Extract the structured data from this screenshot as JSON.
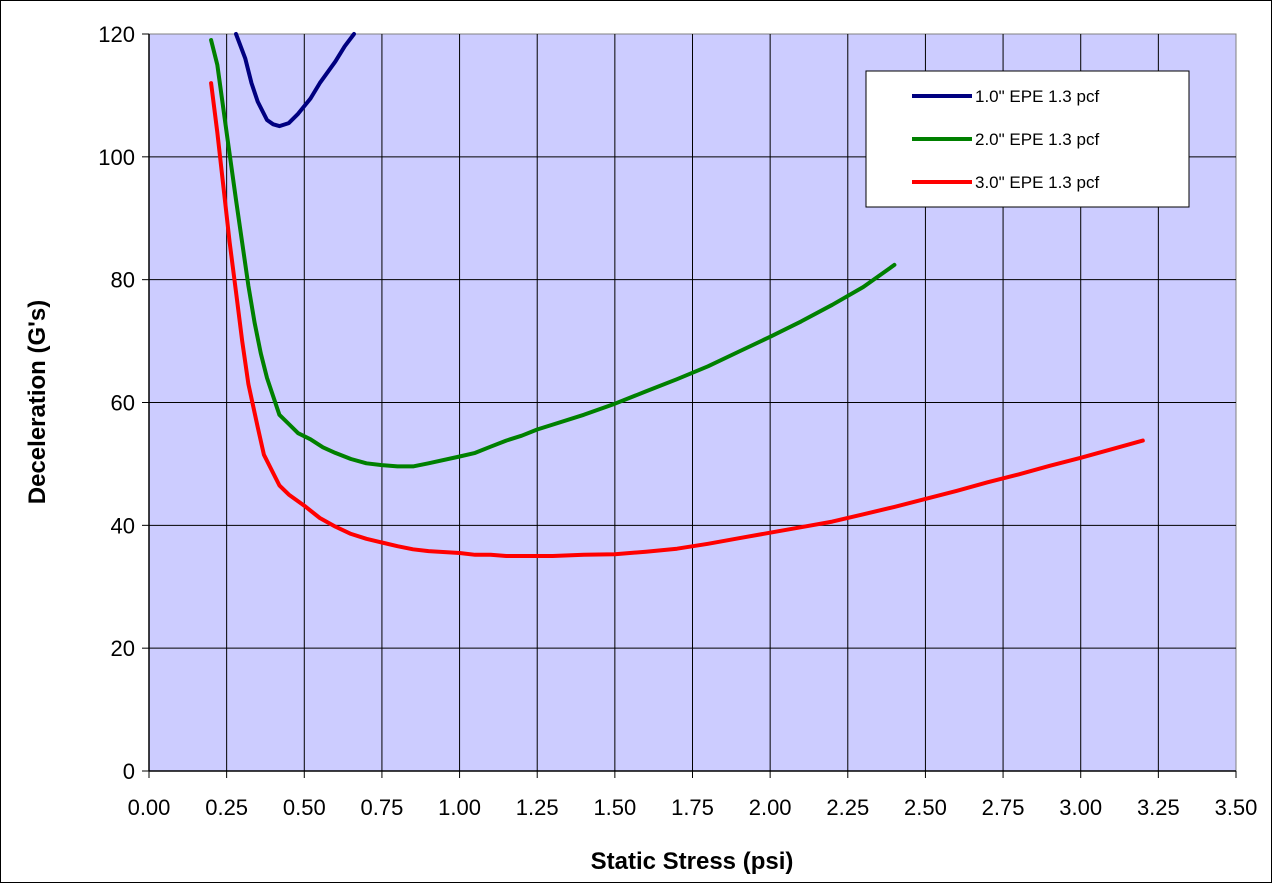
{
  "chart_data": {
    "type": "line",
    "xlabel": "Static Stress (psi)",
    "ylabel": "Deceleration (G's)",
    "xlim": [
      0,
      3.5
    ],
    "ylim": [
      0,
      120
    ],
    "x_tick_labels": [
      "0.00",
      "0.25",
      "0.50",
      "0.75",
      "1.00",
      "1.25",
      "1.50",
      "1.75",
      "2.00",
      "2.25",
      "2.50",
      "2.75",
      "3.00",
      "3.25",
      "3.50"
    ],
    "y_tick_labels": [
      "0",
      "20",
      "40",
      "60",
      "80",
      "100",
      "120"
    ],
    "grid": true,
    "plot_background": "#ccccff",
    "legend_position": "top-right",
    "series": [
      {
        "name": "1.0\" EPE 1.3 pcf",
        "color": "#000080",
        "points": [
          [
            0.28,
            120
          ],
          [
            0.31,
            116
          ],
          [
            0.33,
            112
          ],
          [
            0.35,
            109
          ],
          [
            0.38,
            106
          ],
          [
            0.4,
            105.3
          ],
          [
            0.42,
            105
          ],
          [
            0.45,
            105.5
          ],
          [
            0.48,
            107
          ],
          [
            0.52,
            109.5
          ],
          [
            0.55,
            112
          ],
          [
            0.6,
            115.5
          ],
          [
            0.63,
            118
          ],
          [
            0.66,
            120
          ]
        ]
      },
      {
        "name": "2.0\" EPE 1.3 pcf",
        "color": "#008000",
        "points": [
          [
            0.2,
            119
          ],
          [
            0.22,
            115
          ],
          [
            0.25,
            104
          ],
          [
            0.28,
            93
          ],
          [
            0.3,
            86
          ],
          [
            0.32,
            79
          ],
          [
            0.34,
            73
          ],
          [
            0.36,
            68
          ],
          [
            0.38,
            64
          ],
          [
            0.4,
            61
          ],
          [
            0.42,
            58
          ],
          [
            0.45,
            56.5
          ],
          [
            0.48,
            55
          ],
          [
            0.52,
            54
          ],
          [
            0.56,
            52.7
          ],
          [
            0.6,
            51.8
          ],
          [
            0.65,
            50.8
          ],
          [
            0.7,
            50.1
          ],
          [
            0.75,
            49.8
          ],
          [
            0.8,
            49.6
          ],
          [
            0.85,
            49.6
          ],
          [
            0.9,
            50.1
          ],
          [
            1.0,
            51.2
          ],
          [
            1.05,
            51.8
          ],
          [
            1.1,
            52.8
          ],
          [
            1.15,
            53.8
          ],
          [
            1.2,
            54.6
          ],
          [
            1.25,
            55.6
          ],
          [
            1.3,
            56.4
          ],
          [
            1.4,
            58
          ],
          [
            1.5,
            59.8
          ],
          [
            1.6,
            61.8
          ],
          [
            1.7,
            63.8
          ],
          [
            1.8,
            65.9
          ],
          [
            1.9,
            68.3
          ],
          [
            2.0,
            70.7
          ],
          [
            2.1,
            73.2
          ],
          [
            2.2,
            75.9
          ],
          [
            2.3,
            78.8
          ],
          [
            2.4,
            82.4
          ]
        ]
      },
      {
        "name": "3.0\" EPE 1.3 pcf",
        "color": "#ff0000",
        "points": [
          [
            0.2,
            112
          ],
          [
            0.22,
            104
          ],
          [
            0.24,
            95
          ],
          [
            0.26,
            86
          ],
          [
            0.28,
            78
          ],
          [
            0.3,
            70
          ],
          [
            0.32,
            63
          ],
          [
            0.35,
            56
          ],
          [
            0.37,
            51.5
          ],
          [
            0.4,
            48.5
          ],
          [
            0.42,
            46.5
          ],
          [
            0.45,
            45
          ],
          [
            0.5,
            43.2
          ],
          [
            0.55,
            41.2
          ],
          [
            0.6,
            39.8
          ],
          [
            0.65,
            38.6
          ],
          [
            0.7,
            37.8
          ],
          [
            0.75,
            37.2
          ],
          [
            0.8,
            36.6
          ],
          [
            0.85,
            36.1
          ],
          [
            0.9,
            35.8
          ],
          [
            1.0,
            35.5
          ],
          [
            1.05,
            35.2
          ],
          [
            1.1,
            35.2
          ],
          [
            1.15,
            35
          ],
          [
            1.2,
            35
          ],
          [
            1.3,
            35
          ],
          [
            1.4,
            35.2
          ],
          [
            1.5,
            35.3
          ],
          [
            1.6,
            35.7
          ],
          [
            1.7,
            36.2
          ],
          [
            1.8,
            37
          ],
          [
            1.9,
            37.9
          ],
          [
            2.0,
            38.8
          ],
          [
            2.1,
            39.7
          ],
          [
            2.2,
            40.6
          ],
          [
            2.3,
            41.8
          ],
          [
            2.4,
            43
          ],
          [
            2.5,
            44.3
          ],
          [
            2.6,
            45.6
          ],
          [
            2.7,
            47
          ],
          [
            2.8,
            48.3
          ],
          [
            2.9,
            49.7
          ],
          [
            3.0,
            51
          ],
          [
            3.1,
            52.4
          ],
          [
            3.2,
            53.8
          ]
        ]
      }
    ]
  }
}
